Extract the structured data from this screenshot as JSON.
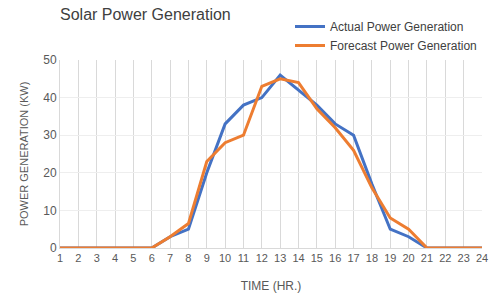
{
  "chart_data": {
    "type": "line",
    "title": "Solar Power Generation",
    "x_label": "TIME (HR.)",
    "y_label": "POWER GENERATION (KW)",
    "categories": [
      "1",
      "2",
      "3",
      "4",
      "5",
      "6",
      "7",
      "8",
      "9",
      "10",
      "11",
      "12",
      "13",
      "14",
      "15",
      "16",
      "17",
      "18",
      "19",
      "20",
      "21",
      "22",
      "23",
      "24"
    ],
    "series": [
      {
        "name": "Actual Power Generation",
        "color": "#4472c4",
        "values": [
          0,
          0,
          0,
          0,
          0,
          0,
          3,
          5,
          20,
          33,
          38,
          40,
          46,
          42,
          38,
          33,
          30,
          17,
          5,
          3,
          0,
          0,
          0,
          0
        ]
      },
      {
        "name": "Forecast Power Generation",
        "color": "#ed7d31",
        "values": [
          0,
          0,
          0,
          0,
          0,
          0,
          3,
          6.5,
          23,
          28,
          30,
          43,
          45,
          44,
          37,
          32,
          26,
          16,
          8,
          5,
          0,
          0,
          0,
          0
        ]
      }
    ],
    "ylim": [
      0,
      50
    ],
    "yticks": [
      0,
      10,
      20,
      30,
      40,
      50
    ],
    "grid": true,
    "legend": "upper right"
  }
}
